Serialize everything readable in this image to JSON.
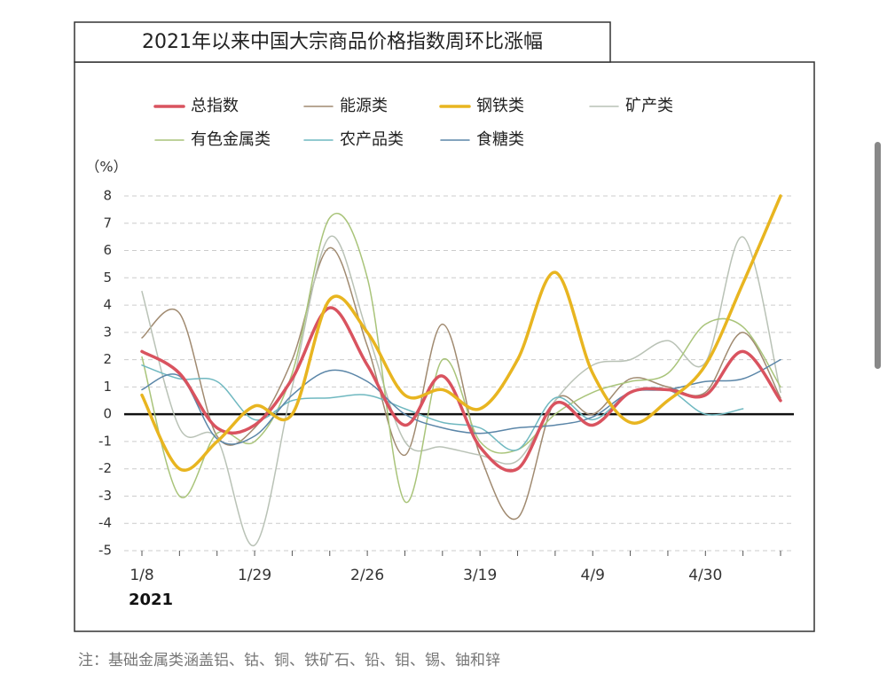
{
  "chart_data": {
    "type": "line",
    "title": "2021年以来中国大宗商品价格指数周环比涨幅",
    "y_unit": "（%）",
    "year_label": "2021",
    "note": "注：基础金属类涵盖铝、钴、铜、铁矿石、铅、钼、锡、铀和锌",
    "categories": [
      "1/8",
      null,
      null,
      "1/29",
      null,
      null,
      "2/26",
      null,
      null,
      "3/19",
      null,
      null,
      "4/9",
      null,
      null,
      "4/30",
      null,
      null
    ],
    "ylim": [
      -5,
      8
    ],
    "yticks": [
      -5,
      -4,
      -3,
      -2,
      -1,
      0,
      1,
      2,
      3,
      4,
      5,
      6,
      7,
      8
    ],
    "grid": true,
    "series": [
      {
        "name": "总指数",
        "color": "#d9535f",
        "width": 3.5,
        "values": [
          2.3,
          1.5,
          -0.5,
          -0.4,
          1.3,
          3.9,
          1.8,
          -0.4,
          1.4,
          -1.2,
          -2.0,
          0.4,
          -0.4,
          0.8,
          0.9,
          0.7,
          2.3,
          0.5
        ]
      },
      {
        "name": "能源类",
        "color": "#a08a70",
        "width": 1.5,
        "values": [
          2.8,
          3.7,
          -0.8,
          -0.5,
          2.0,
          6.1,
          2.5,
          -1.5,
          3.3,
          -1.5,
          -3.8,
          0.5,
          0.0,
          1.3,
          1.0,
          0.8,
          3.0,
          0.6
        ]
      },
      {
        "name": "钢铁类",
        "color": "#e8b520",
        "width": 3.5,
        "values": [
          0.7,
          -2.0,
          -1.0,
          0.3,
          0.0,
          4.2,
          3.0,
          0.7,
          0.9,
          0.2,
          2.0,
          5.2,
          1.5,
          -0.3,
          0.5,
          1.8,
          4.8,
          8.0
        ]
      },
      {
        "name": "矿产类",
        "color": "#b9c2b6",
        "width": 1.5,
        "values": [
          4.5,
          -0.5,
          -0.9,
          -4.8,
          1.0,
          6.5,
          3.0,
          -1.0,
          -1.2,
          -1.5,
          -1.7,
          0.5,
          1.8,
          2.0,
          2.7,
          1.9,
          6.5,
          0.8
        ]
      },
      {
        "name": "有色金属类",
        "color": "#a9c47a",
        "width": 1.5,
        "values": [
          2.1,
          -3.0,
          -0.7,
          -1.0,
          1.5,
          7.2,
          5.0,
          -3.2,
          2.0,
          -1.0,
          -1.3,
          0.0,
          0.8,
          1.2,
          1.5,
          3.3,
          3.2,
          1.0
        ]
      },
      {
        "name": "农产品类",
        "color": "#6fb8c0",
        "width": 1.5,
        "values": [
          1.8,
          1.3,
          1.2,
          -0.2,
          0.5,
          0.6,
          0.7,
          0.2,
          -0.3,
          -0.5,
          -1.3,
          0.6,
          -0.2,
          0.8,
          0.9,
          0.0,
          0.2,
          null
        ]
      },
      {
        "name": "食糖类",
        "color": "#5b86a8",
        "width": 1.5,
        "values": [
          0.9,
          1.4,
          -0.9,
          -0.8,
          0.7,
          1.6,
          1.2,
          0.0,
          -0.5,
          -0.7,
          -0.5,
          -0.4,
          -0.1,
          0.8,
          0.9,
          1.2,
          1.3,
          2.0
        ]
      }
    ]
  }
}
